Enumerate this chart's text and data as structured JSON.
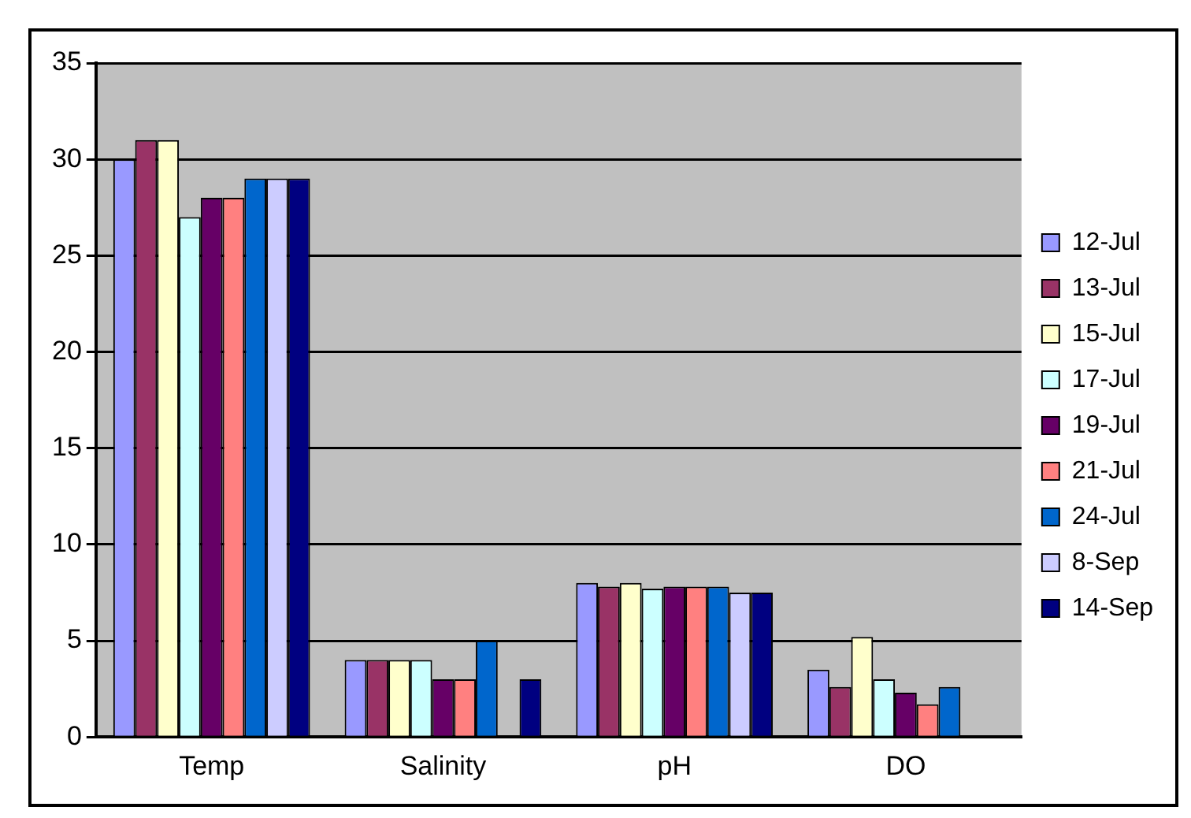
{
  "chart_data": {
    "type": "bar",
    "categories": [
      "Temp",
      "Salinity",
      "pH",
      "DO"
    ],
    "series": [
      {
        "name": "12-Jul",
        "color": "#9999ff",
        "values": [
          30,
          4,
          8.0,
          3.5
        ]
      },
      {
        "name": "13-Jul",
        "color": "#993366",
        "values": [
          31,
          4,
          7.8,
          2.6
        ]
      },
      {
        "name": "15-Jul",
        "color": "#ffffcc",
        "values": [
          31,
          4,
          8.0,
          5.2
        ]
      },
      {
        "name": "17-Jul",
        "color": "#ccffff",
        "values": [
          27,
          4,
          7.7,
          3.0
        ]
      },
      {
        "name": "19-Jul",
        "color": "#660066",
        "values": [
          28,
          3,
          7.8,
          2.3
        ]
      },
      {
        "name": "21-Jul",
        "color": "#ff8080",
        "values": [
          28,
          3,
          7.8,
          1.7
        ]
      },
      {
        "name": "24-Jul",
        "color": "#0066cc",
        "values": [
          29,
          5,
          7.8,
          2.6
        ]
      },
      {
        "name": "8-Sep",
        "color": "#ccccff",
        "values": [
          29,
          null,
          7.5,
          null
        ]
      },
      {
        "name": "14-Sep",
        "color": "#000080",
        "values": [
          29,
          3,
          7.5,
          null
        ]
      }
    ],
    "ylim": [
      0,
      35
    ],
    "yticks": [
      0,
      5,
      10,
      15,
      20,
      25,
      30,
      35
    ],
    "grid": "y",
    "legend": "right"
  }
}
